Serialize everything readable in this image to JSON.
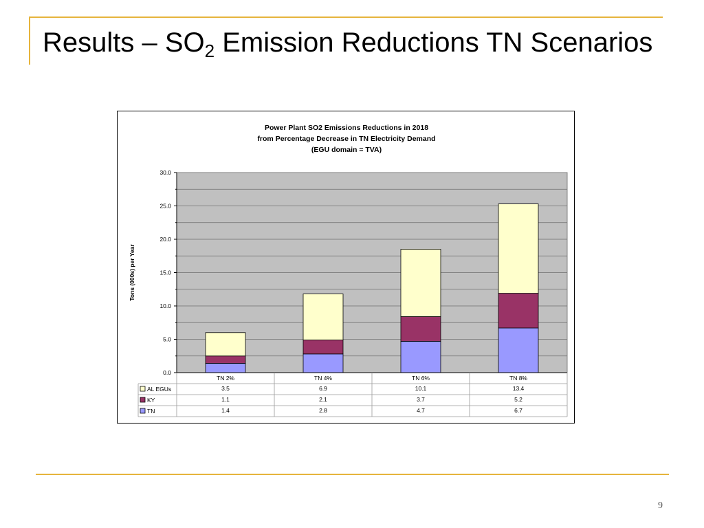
{
  "slide": {
    "title_prefix": "Results – SO",
    "title_sub": "2",
    "title_suffix": " Emission Reductions TN Scenarios",
    "page_number": "9"
  },
  "colors": {
    "accent": "#e6b43c",
    "plot_bg": "#c0c0c0",
    "series": {
      "AL EGUs": "#ffffcc",
      "KY": "#993366",
      "TN": "#9999ff"
    }
  },
  "chart_data": {
    "type": "bar",
    "stacked": true,
    "title_lines": [
      "Power Plant SO2 Emissions Reductions in 2018",
      "from Percentage Decrease in TN Electricity Demand",
      "(EGU domain = TVA)"
    ],
    "xlabel": "",
    "ylabel": "Tons (000s) per Year",
    "ylim": [
      0,
      30
    ],
    "yticks": [
      "0.0",
      "5.0",
      "10.0",
      "15.0",
      "20.0",
      "25.0",
      "30.0"
    ],
    "grid": true,
    "legend": "data-table-left",
    "categories": [
      "TN 2%",
      "TN 4%",
      "TN 6%",
      "TN 8%"
    ],
    "series": [
      {
        "name": "AL EGUs",
        "values": [
          3.5,
          6.9,
          10.1,
          13.4
        ],
        "labels": [
          "3.5",
          "6.9",
          "10.1",
          "13.4"
        ]
      },
      {
        "name": "KY",
        "values": [
          1.1,
          2.1,
          3.7,
          5.2
        ],
        "labels": [
          "1.1",
          "2.1",
          "3.7",
          "5.2"
        ]
      },
      {
        "name": "TN",
        "values": [
          1.4,
          2.8,
          4.7,
          6.7
        ],
        "labels": [
          "1.4",
          "2.8",
          "4.7",
          "6.7"
        ]
      }
    ]
  }
}
